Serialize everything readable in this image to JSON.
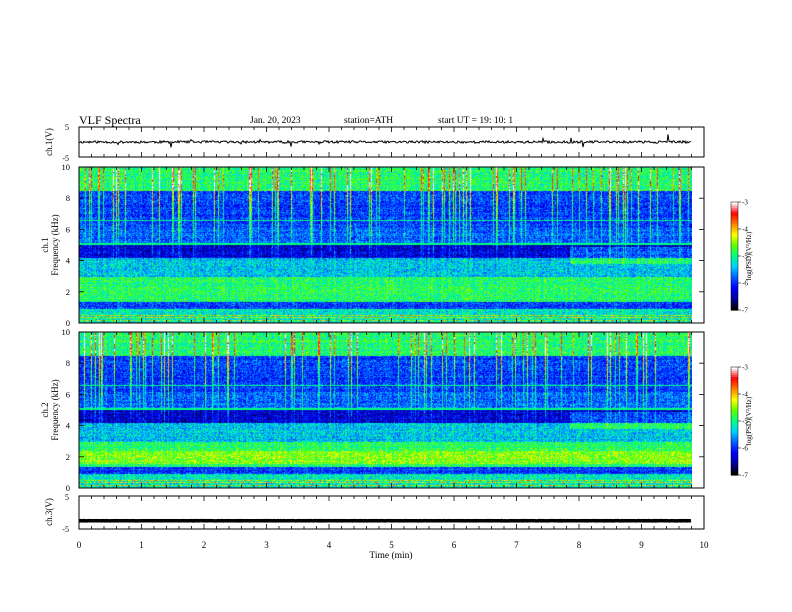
{
  "chart_data": {
    "type": "heatmap",
    "header": {
      "title": "VLF  Spectra",
      "date": "Jan. 20, 2023",
      "station": "station=ATH",
      "start": "start  UT  =    19: 10: 1"
    },
    "x_axis": {
      "label": "Time  (min)",
      "range": [
        0,
        10
      ],
      "ticks": [
        "0",
        "1",
        "2",
        "3",
        "4",
        "5",
        "6",
        "7",
        "8",
        "9",
        "10"
      ]
    },
    "panels": [
      {
        "kind": "waveform",
        "ylabel": "ch.1(V)",
        "yticks": [
          "5",
          "-5"
        ],
        "yrange": [
          -5,
          5
        ],
        "level": 0,
        "noise": 0.4
      },
      {
        "kind": "spectrogram",
        "ylabel_top": "ch.1",
        "ylabel_bottom": "Frequency  (kHz)",
        "yrange": [
          0,
          10
        ],
        "yticks": [
          "0",
          "2",
          "4",
          "6",
          "8",
          "10"
        ],
        "colorbar": {
          "label": "log(PSD)(V²/Hz)",
          "ticks": [
            "-3",
            "-4",
            "-5",
            "-6",
            "-7"
          ],
          "range": [
            -7,
            -3
          ]
        }
      },
      {
        "kind": "spectrogram",
        "ylabel_top": "ch.2",
        "ylabel_bottom": "Frequency  (kHz)",
        "yrange": [
          0,
          10
        ],
        "yticks": [
          "0",
          "2",
          "4",
          "6",
          "8",
          "10"
        ],
        "colorbar": {
          "label": "log(PSD)(V²/Hz)",
          "ticks": [
            "-3",
            "-4",
            "-5",
            "-6",
            "-7"
          ],
          "range": [
            -7,
            -3
          ]
        }
      },
      {
        "kind": "waveform",
        "ylabel": "ch.3(V)",
        "yticks": [
          "5",
          "-5"
        ],
        "yrange": [
          -5,
          5
        ],
        "level": -2.5,
        "noise": 0.05
      }
    ],
    "data_extent_min": 9.8,
    "colormap": [
      "#000000",
      "#0000a0",
      "#0000ff",
      "#0060ff",
      "#00d0ff",
      "#00ff80",
      "#60ff00",
      "#ffff00",
      "#ff8000",
      "#ff0000",
      "#ffffff"
    ]
  }
}
